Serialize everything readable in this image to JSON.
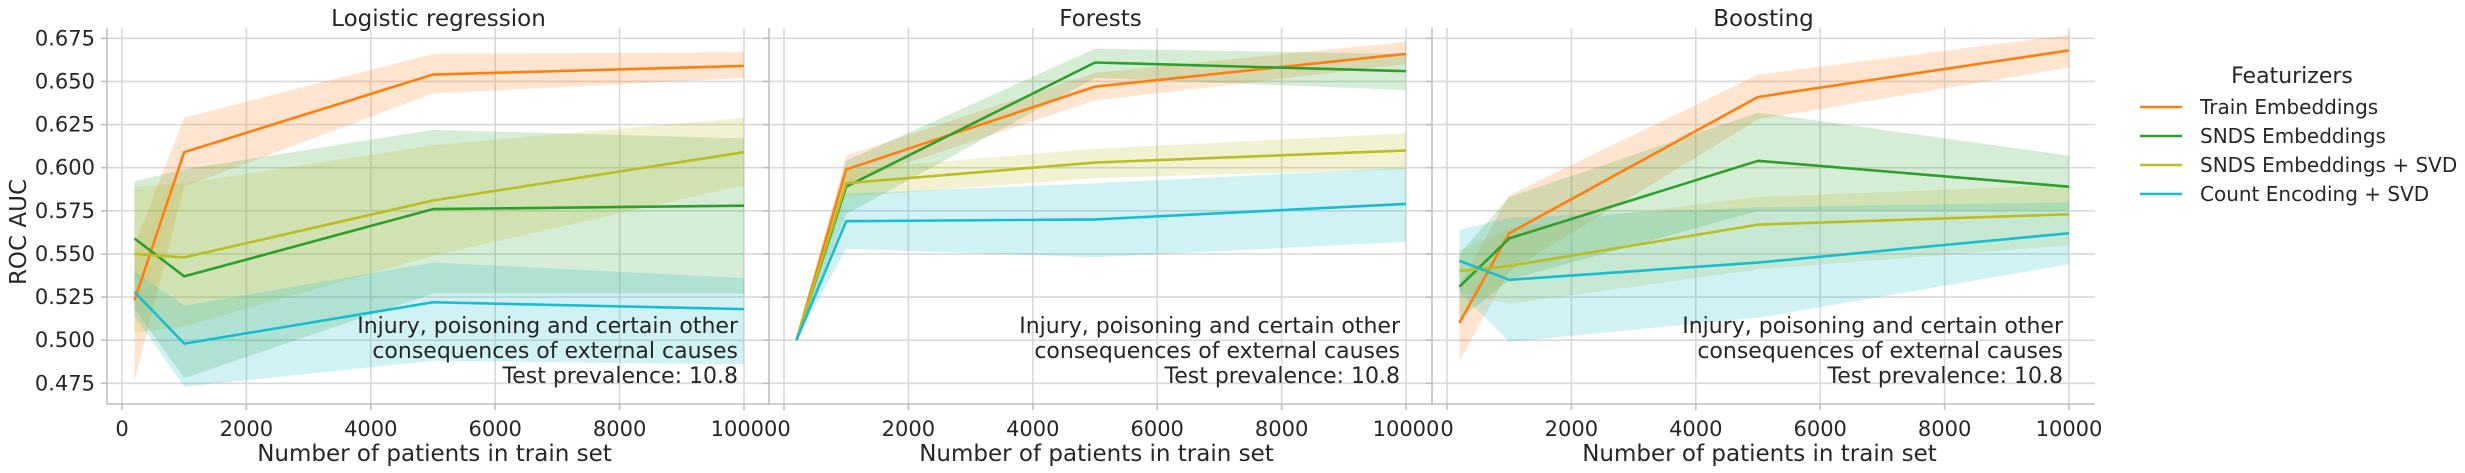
{
  "chart_data": {
    "type": "line",
    "ylabel": "ROC AUC",
    "xlabel": "Number of patients in train set",
    "ylim": [
      0.463,
      0.681
    ],
    "xlim": [
      -200,
      10500
    ],
    "x": [
      200,
      1000,
      5000,
      10000
    ],
    "xticks": [
      0,
      2000,
      4000,
      6000,
      8000,
      10000
    ],
    "xtick_labels": [
      "0",
      "2000",
      "4000",
      "6000",
      "8000",
      "10000"
    ],
    "yticks": [
      0.475,
      0.5,
      0.525,
      0.55,
      0.575,
      0.6,
      0.625,
      0.65,
      0.675
    ],
    "ytick_labels": [
      "0.475",
      "0.500",
      "0.525",
      "0.550",
      "0.575",
      "0.600",
      "0.625",
      "0.650",
      "0.675"
    ],
    "grid": true,
    "legend": {
      "title": "Featurizers",
      "placement": "right",
      "entries": [
        {
          "name": "Train Embeddings",
          "color": "#ff7f0e"
        },
        {
          "name": "SNDS Embeddings",
          "color": "#2ca02c"
        },
        {
          "name": "SNDS Embeddings + SVD",
          "color": "#bcbd22"
        },
        {
          "name": "Count Encoding + SVD",
          "color": "#17becf"
        }
      ]
    },
    "annotation": [
      "Injury, poisoning and certain other",
      "consequences of external causes",
      "Test prevalence: 10.8"
    ],
    "panels": [
      {
        "title": "Logistic regression",
        "series": [
          {
            "name": "Train Embeddings",
            "color": "#ff7f0e",
            "values": [
              0.523,
              0.609,
              0.654,
              0.659
            ],
            "lower": [
              0.476,
              0.589,
              0.643,
              0.652
            ],
            "upper": [
              0.555,
              0.629,
              0.666,
              0.667
            ]
          },
          {
            "name": "SNDS Embeddings",
            "color": "#2ca02c",
            "values": [
              0.559,
              0.537,
              0.576,
              0.578
            ],
            "lower": [
              0.518,
              0.478,
              0.527,
              0.527
            ],
            "upper": [
              0.592,
              0.599,
              0.622,
              0.617
            ]
          },
          {
            "name": "SNDS Embeddings + SVD",
            "color": "#bcbd22",
            "values": [
              0.55,
              0.548,
              0.581,
              0.609
            ],
            "lower": [
              0.504,
              0.508,
              0.549,
              0.59
            ],
            "upper": [
              0.589,
              0.591,
              0.613,
              0.629
            ]
          },
          {
            "name": "Count Encoding + SVD",
            "color": "#17becf",
            "values": [
              0.528,
              0.498,
              0.522,
              0.518
            ],
            "lower": [
              0.514,
              0.473,
              0.488,
              0.486
            ],
            "upper": [
              0.54,
              0.52,
              0.545,
              0.536
            ]
          }
        ]
      },
      {
        "title": "Forests",
        "series": [
          {
            "name": "Train Embeddings",
            "color": "#ff7f0e",
            "values": [
              0.5,
              0.599,
              0.647,
              0.666
            ],
            "lower": [
              0.5,
              0.591,
              0.639,
              0.66
            ],
            "upper": [
              0.5,
              0.607,
              0.655,
              0.673
            ]
          },
          {
            "name": "SNDS Embeddings",
            "color": "#2ca02c",
            "values": [
              0.5,
              0.589,
              0.661,
              0.656
            ],
            "lower": [
              0.5,
              0.573,
              0.652,
              0.645
            ],
            "upper": [
              0.5,
              0.604,
              0.669,
              0.666
            ]
          },
          {
            "name": "SNDS Embeddings + SVD",
            "color": "#bcbd22",
            "values": [
              0.5,
              0.591,
              0.603,
              0.61
            ],
            "lower": [
              0.5,
              0.583,
              0.594,
              0.599
            ],
            "upper": [
              0.5,
              0.599,
              0.611,
              0.62
            ]
          },
          {
            "name": "Count Encoding + SVD",
            "color": "#17becf",
            "values": [
              0.5,
              0.569,
              0.57,
              0.579
            ],
            "lower": [
              0.5,
              0.553,
              0.548,
              0.557
            ],
            "upper": [
              0.5,
              0.585,
              0.591,
              0.6
            ]
          }
        ]
      },
      {
        "title": "Boosting",
        "series": [
          {
            "name": "Train Embeddings",
            "color": "#ff7f0e",
            "values": [
              0.51,
              0.562,
              0.641,
              0.668
            ],
            "lower": [
              0.488,
              0.54,
              0.628,
              0.658
            ],
            "upper": [
              0.532,
              0.584,
              0.654,
              0.677
            ]
          },
          {
            "name": "SNDS Embeddings",
            "color": "#2ca02c",
            "values": [
              0.531,
              0.559,
              0.604,
              0.589
            ],
            "lower": [
              0.512,
              0.535,
              0.575,
              0.575
            ],
            "upper": [
              0.55,
              0.583,
              0.632,
              0.607
            ]
          },
          {
            "name": "SNDS Embeddings + SVD",
            "color": "#bcbd22",
            "values": [
              0.54,
              0.543,
              0.567,
              0.573
            ],
            "lower": [
              0.528,
              0.521,
              0.541,
              0.555
            ],
            "upper": [
              0.552,
              0.565,
              0.583,
              0.59
            ]
          },
          {
            "name": "Count Encoding + SVD",
            "color": "#17becf",
            "values": [
              0.546,
              0.535,
              0.545,
              0.562
            ],
            "lower": [
              0.528,
              0.499,
              0.513,
              0.544
            ],
            "upper": [
              0.564,
              0.571,
              0.577,
              0.58
            ]
          }
        ]
      }
    ]
  }
}
